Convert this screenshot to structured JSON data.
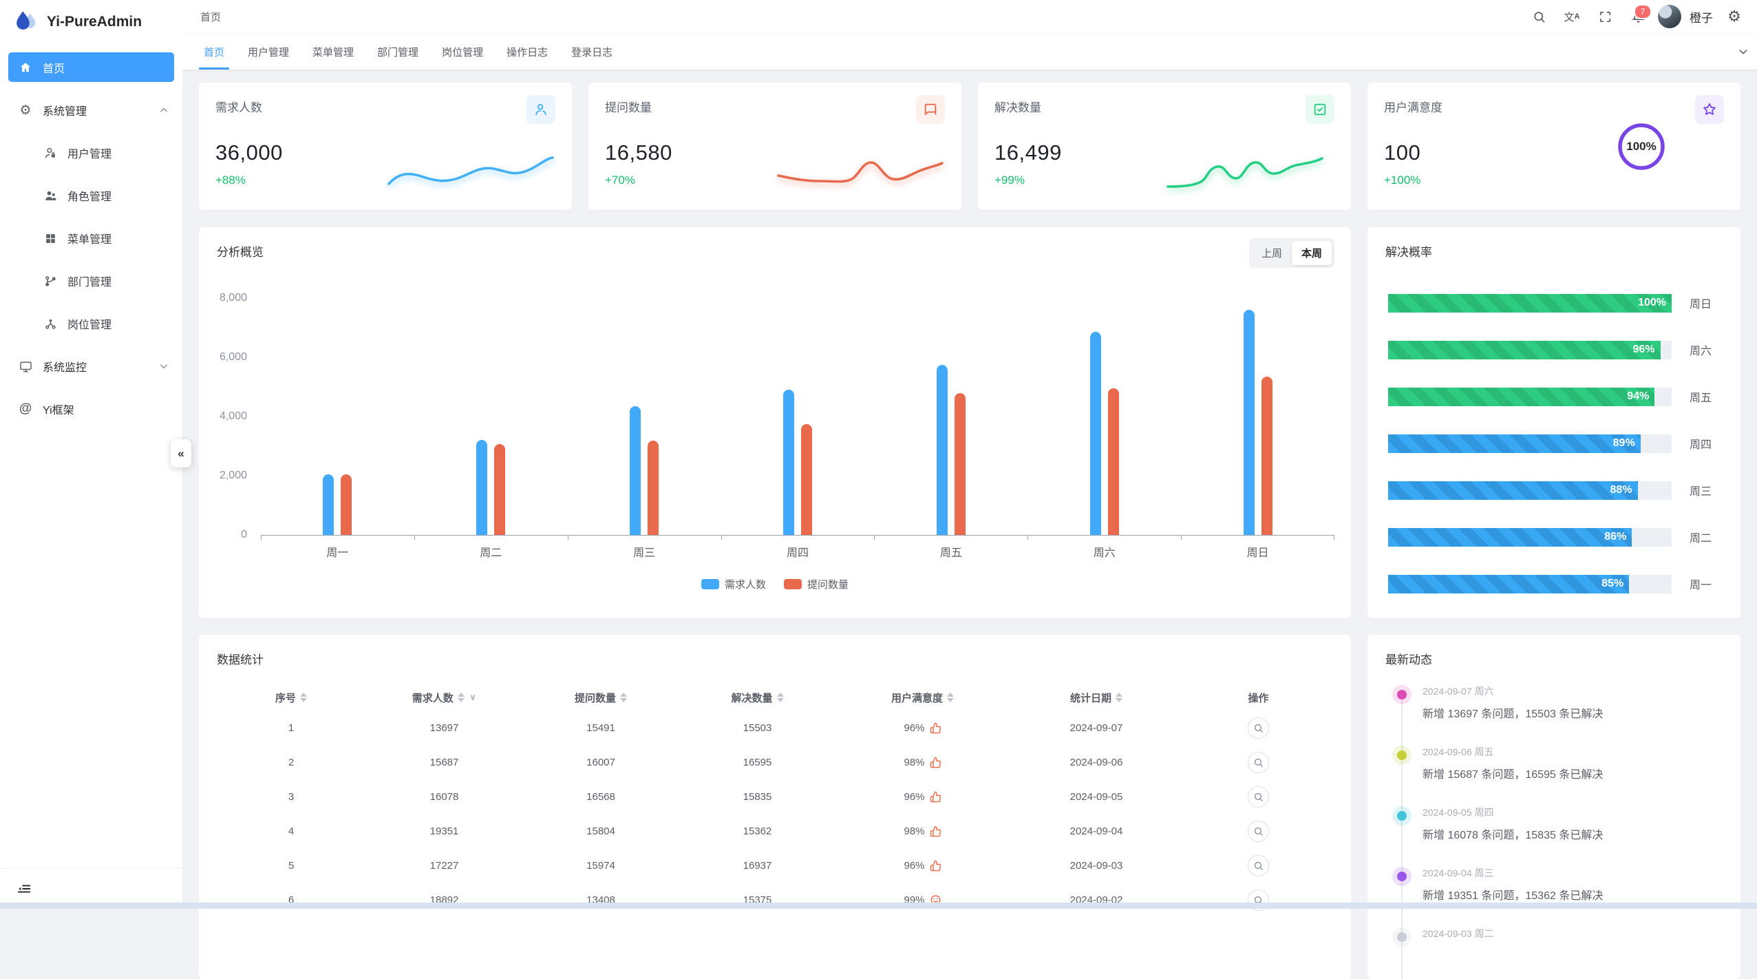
{
  "app": {
    "name": "Yi-PureAdmin",
    "logo_icon": "water-drop-icon"
  },
  "sidebar": {
    "items": [
      {
        "label": "首页",
        "icon": "home-icon",
        "active": true
      },
      {
        "label": "系统管理",
        "icon": "gear-icon",
        "state": "expanded"
      },
      {
        "label": "用户管理",
        "icon": "user-lock-icon"
      },
      {
        "label": "角色管理",
        "icon": "users-icon"
      },
      {
        "label": "菜单管理",
        "icon": "menu-grid-icon"
      },
      {
        "label": "部门管理",
        "icon": "branch-icon"
      },
      {
        "label": "岗位管理",
        "icon": "nodes-icon"
      },
      {
        "label": "系统监控",
        "icon": "monitor-icon",
        "state": "collapsed"
      },
      {
        "label": "Yi框架",
        "icon": "at-icon"
      }
    ],
    "collapse_handle": "«",
    "collapse_icon": "fold-menu-icon"
  },
  "navbar": {
    "breadcrumb": "首页",
    "icons": [
      "search-icon",
      "translate-icon",
      "fullscreen-icon",
      "bell-icon",
      "gear-icon"
    ],
    "notification_count": "7",
    "username": "橙子"
  },
  "tabbar": {
    "tabs": [
      "首页",
      "用户管理",
      "菜单管理",
      "部门管理",
      "岗位管理",
      "操作日志",
      "登录日志"
    ],
    "active_index": 0,
    "more_icon": "chevron-down-icon"
  },
  "stat_cards": [
    {
      "title": "需求人数",
      "value": "36,000",
      "delta": "+88%",
      "icon": "user-icon",
      "accent": "#41b0f8",
      "tint": "#eaf5fe"
    },
    {
      "title": "提问数量",
      "value": "16,580",
      "delta": "+70%",
      "icon": "message-icon",
      "accent": "#e8694d",
      "tint": "#fdf1ed"
    },
    {
      "title": "解决数量",
      "value": "16,499",
      "delta": "+99%",
      "icon": "check-square-icon",
      "accent": "#26ce83",
      "tint": "#e9faf2"
    },
    {
      "title": "用户满意度",
      "value": "100",
      "delta": "+100%",
      "icon": "star-icon",
      "accent": "#7a45e5",
      "tint": "#f1edfd",
      "ring_percent": "100%"
    }
  ],
  "chart_data": [
    {
      "type": "bar",
      "title": "分析概览",
      "toggle": [
        "上周",
        "本周"
      ],
      "active_toggle": "本周",
      "categories": [
        "周一",
        "周二",
        "周三",
        "周四",
        "周五",
        "周六",
        "周日"
      ],
      "series": [
        {
          "name": "需求人数",
          "color": "#41a9f7",
          "values": [
            2050,
            3200,
            4350,
            4900,
            5750,
            6850,
            7600
          ]
        },
        {
          "name": "提问数量",
          "color": "#e8694b",
          "values": [
            2050,
            3080,
            3180,
            3750,
            4800,
            4950,
            5350
          ]
        }
      ],
      "ylim": [
        0,
        8000
      ],
      "yticks": [
        "0",
        "2,000",
        "4,000",
        "6,000",
        "8,000"
      ],
      "grid": false,
      "legend_position": "bottom"
    },
    {
      "type": "bar",
      "title": "解决概率",
      "orientation": "horizontal",
      "unit": "%",
      "categories": [
        "周日",
        "周六",
        "周五",
        "周四",
        "周三",
        "周二",
        "周一"
      ],
      "values": [
        100,
        96,
        94,
        89,
        88,
        86,
        85
      ],
      "colors": [
        "green",
        "green",
        "green",
        "blue",
        "blue",
        "blue",
        "blue"
      ],
      "green_hex": "#2ecc80",
      "blue_hex": "#38a7f4"
    }
  ],
  "table": {
    "title": "数据统计",
    "columns": [
      {
        "label": "序号",
        "sortable": true
      },
      {
        "label": "需求人数",
        "sortable": true,
        "filter": true
      },
      {
        "label": "提问数量",
        "sortable": true
      },
      {
        "label": "解决数量",
        "sortable": true
      },
      {
        "label": "用户满意度",
        "sortable": true
      },
      {
        "label": "统计日期",
        "sortable": true
      },
      {
        "label": "操作"
      }
    ],
    "rows": [
      {
        "no": "1",
        "demand": "13697",
        "question": "15491",
        "solved": "15503",
        "satisfaction": "96%",
        "icon": "thumb-up-icon",
        "date": "2024-09-07"
      },
      {
        "no": "2",
        "demand": "15687",
        "question": "16007",
        "solved": "16595",
        "satisfaction": "98%",
        "icon": "thumb-up-icon",
        "date": "2024-09-06"
      },
      {
        "no": "3",
        "demand": "16078",
        "question": "16568",
        "solved": "15835",
        "satisfaction": "96%",
        "icon": "thumb-up-icon",
        "date": "2024-09-05"
      },
      {
        "no": "4",
        "demand": "19351",
        "question": "15804",
        "solved": "15362",
        "satisfaction": "98%",
        "icon": "thumb-up-icon",
        "date": "2024-09-04"
      },
      {
        "no": "5",
        "demand": "17227",
        "question": "15974",
        "solved": "16937",
        "satisfaction": "96%",
        "icon": "thumb-up-icon",
        "date": "2024-09-03"
      },
      {
        "no": "6",
        "demand": "18892",
        "question": "13408",
        "solved": "15375",
        "satisfaction": "99%",
        "icon": "smile-icon",
        "date": "2024-09-02"
      }
    ],
    "action_icon": "search-icon"
  },
  "timeline": {
    "title": "最新动态",
    "entries": [
      {
        "date": "2024-09-07 周六",
        "text": "新增 13697 条问题，15503 条已解决",
        "dot_color": "#da4cb4"
      },
      {
        "date": "2024-09-06 周五",
        "text": "新增 15687 条问题，16595 条已解决",
        "dot_color": "#c3cf35"
      },
      {
        "date": "2024-09-05 周四",
        "text": "新增 16078 条问题，15835 条已解决",
        "dot_color": "#41c4d9"
      },
      {
        "date": "2024-09-04 周三",
        "text": "新增 19351 条问题，15362 条已解决",
        "dot_color": "#9a58e8"
      },
      {
        "date": "2024-09-03 周二",
        "text": "",
        "dot_color": "#c8ccd4",
        "partial": true
      }
    ]
  }
}
